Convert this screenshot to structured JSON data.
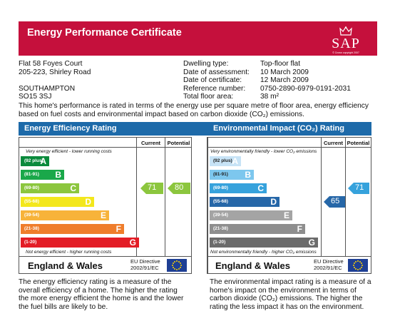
{
  "header": {
    "title": "Energy Performance Certificate",
    "logo_text": "SAP",
    "logo_copyright": "© Crown copyright 2007"
  },
  "property": {
    "address": [
      "Flat 58 Foyes Court",
      "205-223, Shirley Road",
      "",
      "SOUTHAMPTON",
      "SO15 3SJ"
    ]
  },
  "details": {
    "labels": [
      "Dwelling type:",
      "Date of assessment:",
      "Date of certificate:",
      "Reference number:",
      "Total floor area:"
    ],
    "values": [
      "Top-floor flat",
      "10 March 2009",
      "12 March 2009",
      "0750-2890-6979-0191-2031",
      "38 m²"
    ]
  },
  "intro": {
    "line1": "This home's performance is rated in terms of the energy use per square metre of floor area, energy efficiency",
    "line2": "based on fuel costs and environmental impact based on carbon dioxide (CO₂) emissions."
  },
  "efficiency": {
    "title": "Energy Efficiency Rating",
    "col_current": "Current",
    "col_potential": "Potential",
    "top_note": "Very energy efficient - lower running costs",
    "bottom_note": "Not energy efficient - higher running costs",
    "bands": [
      {
        "range": "(92 plus)",
        "letter": "A",
        "color": "#0a8a3c"
      },
      {
        "range": "(81-91)",
        "letter": "B",
        "color": "#1aa84a"
      },
      {
        "range": "(69-80)",
        "letter": "C",
        "color": "#8cc63e"
      },
      {
        "range": "(55-68)",
        "letter": "D",
        "color": "#f3e71c"
      },
      {
        "range": "(39-54)",
        "letter": "E",
        "color": "#f7b33a"
      },
      {
        "range": "(21-38)",
        "letter": "F",
        "color": "#ef7d2b"
      },
      {
        "range": "(1-20)",
        "letter": "G",
        "color": "#e31d26"
      }
    ],
    "current": 71,
    "potential": 80,
    "current_color": "#8cc63e",
    "potential_color": "#8cc63e",
    "region": "England & Wales",
    "directive": [
      "EU Directive",
      "2002/91/EC"
    ]
  },
  "environmental": {
    "title": "Environmental Impact (CO₂) Rating",
    "col_current": "Current",
    "col_potential": "Potential",
    "top_note": "Very environmentally friendly - lower  CO₂ emissions",
    "bottom_note": "Not environmentally friendly - higher  CO₂ emissions",
    "bands": [
      {
        "range": "(92 plus)",
        "letter": "A",
        "color": "#c7e3f6"
      },
      {
        "range": "(81-91)",
        "letter": "B",
        "color": "#7dc7ee"
      },
      {
        "range": "(69-80)",
        "letter": "C",
        "color": "#36a2dc"
      },
      {
        "range": "(55-68)",
        "letter": "D",
        "color": "#2667a8"
      },
      {
        "range": "(39-54)",
        "letter": "E",
        "color": "#a4a4a4"
      },
      {
        "range": "(21-38)",
        "letter": "F",
        "color": "#8e8e8e"
      },
      {
        "range": "(1-20)",
        "letter": "G",
        "color": "#6b6b6b"
      }
    ],
    "current": 65,
    "potential": 71,
    "current_color": "#2667a8",
    "potential_color": "#36a2dc",
    "region": "England & Wales",
    "directive": [
      "EU Directive",
      "2002/91/EC"
    ]
  },
  "footer": {
    "left": [
      "The energy efficiency rating is a measure of the",
      "overall efficiency of a home. The higher the rating",
      "the more energy efficient the home is and the lower",
      "the fuel bills are likely to be."
    ],
    "right": [
      "The environmental impact rating is a measure of a",
      "home's impact on the environment in terms of",
      "carbon dioxide (CO₂) emissions. The higher the",
      "rating the less impact it has on the environment."
    ]
  }
}
